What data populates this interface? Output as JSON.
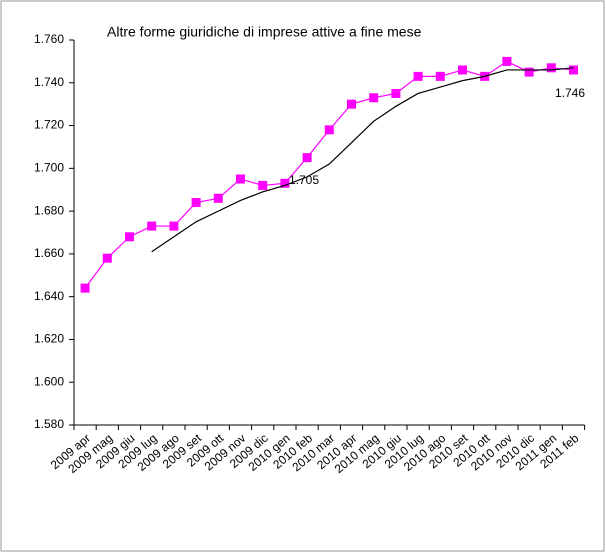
{
  "chart_data": {
    "type": "line",
    "title": "Altre forme giuridiche di imprese attive a fine mese",
    "categories": [
      "2009 apr",
      "2009 mag",
      "2009 giu",
      "2009 lug",
      "2009 ago",
      "2009 set",
      "2009 ott",
      "2009 nov",
      "2009 dic",
      "2010 gen",
      "2010 feb",
      "2010 mar",
      "2010 apr",
      "2010 mag",
      "2010 giu",
      "2010 lug",
      "2010 ago",
      "2010 set",
      "2010 ott",
      "2010 nov",
      "2010 dic",
      "2011 gen",
      "2011 feb"
    ],
    "series": [
      {
        "color": "#ff00ff",
        "marker": "square",
        "values": [
          1644,
          1658,
          1668,
          1673,
          1673,
          1684,
          1686,
          1695,
          1692,
          1693,
          1705,
          1718,
          1730,
          1733,
          1735,
          1743,
          1743,
          1746,
          1743,
          1750,
          1745,
          1747,
          1746
        ]
      },
      {
        "color": "#000000",
        "values": [
          null,
          null,
          null,
          1661,
          1668,
          1675,
          1680,
          1685,
          1689,
          1692,
          1696,
          1702,
          1712,
          1722,
          1729,
          1735,
          1738,
          1741,
          1743,
          1746,
          1746,
          1746,
          1747
        ]
      }
    ],
    "annotations": [
      "1.705",
      "1.746"
    ],
    "ylim": [
      1580,
      1760
    ],
    "yticks": [
      {
        "value": 1580,
        "label": "1.580"
      },
      {
        "value": 1600,
        "label": "1.600"
      },
      {
        "value": 1620,
        "label": "1.620"
      },
      {
        "value": 1640,
        "label": "1.640"
      },
      {
        "value": 1660,
        "label": "1.660"
      },
      {
        "value": 1680,
        "label": "1.680"
      },
      {
        "value": 1700,
        "label": "1.700"
      },
      {
        "value": 1720,
        "label": "1.720"
      },
      {
        "value": 1740,
        "label": "1.740"
      },
      {
        "value": 1760,
        "label": "1.760"
      }
    ],
    "grid": false
  }
}
